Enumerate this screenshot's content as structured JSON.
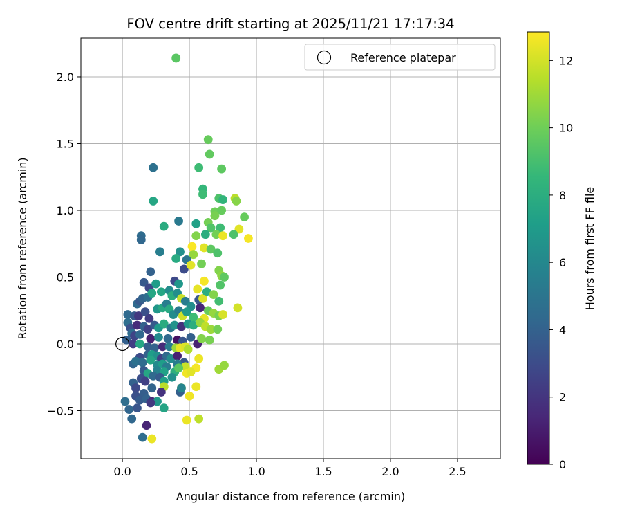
{
  "chart_data": {
    "type": "scatter",
    "title": "FOV centre drift starting at 2025/11/21 17:17:34",
    "xlabel": "Angular distance from reference (arcmin)",
    "ylabel": "Rotation from reference (arcmin)",
    "xlim": [
      -0.31,
      2.82
    ],
    "ylim": [
      -0.86,
      2.29
    ],
    "x_ticks": [
      0.0,
      0.5,
      1.0,
      1.5,
      2.0,
      2.5
    ],
    "x_tick_labels": [
      "0.0",
      "0.5",
      "1.0",
      "1.5",
      "2.0",
      "2.5"
    ],
    "y_ticks": [
      -0.5,
      0.0,
      0.5,
      1.0,
      1.5,
      2.0
    ],
    "y_tick_labels": [
      "−0.5",
      "0.0",
      "0.5",
      "1.0",
      "1.5",
      "2.0"
    ],
    "grid": true,
    "legend": {
      "position": "top-right",
      "entries": [
        "Reference platepar"
      ]
    },
    "reference_point": {
      "x": 0.0,
      "y": 0.0
    },
    "colorbar": {
      "label": "Hours from first FF file",
      "range": [
        0,
        12.85
      ],
      "ticks": [
        0,
        2,
        4,
        6,
        8,
        10,
        12
      ],
      "tick_labels": [
        "0",
        "2",
        "4",
        "6",
        "8",
        "10",
        "12"
      ],
      "colormap": "viridis",
      "colormap_stops": [
        "#440154",
        "#482878",
        "#3e4989",
        "#31688e",
        "#26828e",
        "#1f9e89",
        "#35b779",
        "#6ece58",
        "#b5de2b",
        "#fde725"
      ]
    },
    "points": [
      [
        0.4,
        2.14,
        9.5
      ],
      [
        0.64,
        1.53,
        9.8
      ],
      [
        0.65,
        1.42,
        9.7
      ],
      [
        0.57,
        1.32,
        8.8
      ],
      [
        0.74,
        1.31,
        9.6
      ],
      [
        0.23,
        1.32,
        4.8
      ],
      [
        0.6,
        1.16,
        8.5
      ],
      [
        0.6,
        1.12,
        8.8
      ],
      [
        0.23,
        1.07,
        7.6
      ],
      [
        0.72,
        1.09,
        9.2
      ],
      [
        0.75,
        1.08,
        8.4
      ],
      [
        0.84,
        1.09,
        11.5
      ],
      [
        0.85,
        1.07,
        10.5
      ],
      [
        0.69,
        0.99,
        10.0
      ],
      [
        0.74,
        1.0,
        9.8
      ],
      [
        0.69,
        0.96,
        10.2
      ],
      [
        0.91,
        0.95,
        9.8
      ],
      [
        0.42,
        0.92,
        5.2
      ],
      [
        0.55,
        0.9,
        7.3
      ],
      [
        0.64,
        0.91,
        10.1
      ],
      [
        0.31,
        0.88,
        7.9
      ],
      [
        0.66,
        0.87,
        9.3
      ],
      [
        0.73,
        0.87,
        8.8
      ],
      [
        0.87,
        0.86,
        12.3
      ],
      [
        0.14,
        0.81,
        4.5
      ],
      [
        0.14,
        0.78,
        4.3
      ],
      [
        0.7,
        0.82,
        10.1
      ],
      [
        0.75,
        0.81,
        12.5
      ],
      [
        0.83,
        0.82,
        9.2
      ],
      [
        0.94,
        0.79,
        12.7
      ],
      [
        0.55,
        0.81,
        10.4
      ],
      [
        0.62,
        0.82,
        8.0
      ],
      [
        0.28,
        0.69,
        5.5
      ],
      [
        0.43,
        0.69,
        6.4
      ],
      [
        0.52,
        0.73,
        12.8
      ],
      [
        0.61,
        0.72,
        12.3
      ],
      [
        0.66,
        0.71,
        9.6
      ],
      [
        0.71,
        0.68,
        9.2
      ],
      [
        0.53,
        0.67,
        10.8
      ],
      [
        0.4,
        0.64,
        7.8
      ],
      [
        0.48,
        0.63,
        5.0
      ],
      [
        0.46,
        0.56,
        3.0
      ],
      [
        0.51,
        0.59,
        12.3
      ],
      [
        0.59,
        0.6,
        10.1
      ],
      [
        0.72,
        0.55,
        10.4
      ],
      [
        0.74,
        0.51,
        10.6
      ],
      [
        0.76,
        0.5,
        9.6
      ],
      [
        0.21,
        0.54,
        4.0
      ],
      [
        0.16,
        0.46,
        3.6
      ],
      [
        0.2,
        0.42,
        2.8
      ],
      [
        0.25,
        0.45,
        7.1
      ],
      [
        0.39,
        0.47,
        2.9
      ],
      [
        0.42,
        0.45,
        6.8
      ],
      [
        0.56,
        0.41,
        12.4
      ],
      [
        0.61,
        0.47,
        12.7
      ],
      [
        0.73,
        0.44,
        9.3
      ],
      [
        0.11,
        0.3,
        4.4
      ],
      [
        0.13,
        0.32,
        3.6
      ],
      [
        0.15,
        0.34,
        4.1
      ],
      [
        0.19,
        0.35,
        4.6
      ],
      [
        0.22,
        0.38,
        7.6
      ],
      [
        0.29,
        0.39,
        7.6
      ],
      [
        0.35,
        0.4,
        6.2
      ],
      [
        0.37,
        0.36,
        8.0
      ],
      [
        0.41,
        0.38,
        6.3
      ],
      [
        0.44,
        0.34,
        11.8
      ],
      [
        0.47,
        0.32,
        5.4
      ],
      [
        0.51,
        0.28,
        6.3
      ],
      [
        0.57,
        0.33,
        3.5
      ],
      [
        0.6,
        0.34,
        12.2
      ],
      [
        0.63,
        0.39,
        8.0
      ],
      [
        0.68,
        0.37,
        10.4
      ],
      [
        0.72,
        0.32,
        8.9
      ],
      [
        0.86,
        0.27,
        12.0
      ],
      [
        0.04,
        0.22,
        4.4
      ],
      [
        0.09,
        0.21,
        3.6
      ],
      [
        0.12,
        0.21,
        2.1
      ],
      [
        0.17,
        0.24,
        3.2
      ],
      [
        0.2,
        0.19,
        2.3
      ],
      [
        0.26,
        0.26,
        6.8
      ],
      [
        0.3,
        0.27,
        7.7
      ],
      [
        0.33,
        0.3,
        5.5
      ],
      [
        0.35,
        0.26,
        7.8
      ],
      [
        0.38,
        0.22,
        6.2
      ],
      [
        0.42,
        0.25,
        5.3
      ],
      [
        0.45,
        0.21,
        11.9
      ],
      [
        0.48,
        0.24,
        7.0
      ],
      [
        0.53,
        0.2,
        8.8
      ],
      [
        0.58,
        0.27,
        1.4
      ],
      [
        0.61,
        0.19,
        12.4
      ],
      [
        0.64,
        0.25,
        9.8
      ],
      [
        0.68,
        0.23,
        10.8
      ],
      [
        0.72,
        0.21,
        10.2
      ],
      [
        0.75,
        0.22,
        12.1
      ],
      [
        0.04,
        0.16,
        4.6
      ],
      [
        0.06,
        0.12,
        3.2
      ],
      [
        0.11,
        0.14,
        1.6
      ],
      [
        0.16,
        0.13,
        4.0
      ],
      [
        0.19,
        0.11,
        2.5
      ],
      [
        0.24,
        0.14,
        3.6
      ],
      [
        0.27,
        0.12,
        6.9
      ],
      [
        0.31,
        0.15,
        7.9
      ],
      [
        0.36,
        0.12,
        5.1
      ],
      [
        0.39,
        0.14,
        6.6
      ],
      [
        0.44,
        0.13,
        1.8
      ],
      [
        0.49,
        0.15,
        6.8
      ],
      [
        0.53,
        0.14,
        8.0
      ],
      [
        0.58,
        0.16,
        10.8
      ],
      [
        0.62,
        0.13,
        11.6
      ],
      [
        0.66,
        0.11,
        10.9
      ],
      [
        0.71,
        0.11,
        10.1
      ],
      [
        0.07,
        0.08,
        4.5
      ],
      [
        0.09,
        0.06,
        2.7
      ],
      [
        0.13,
        0.07,
        4.3
      ],
      [
        0.21,
        0.04,
        1.1
      ],
      [
        0.27,
        0.05,
        6.1
      ],
      [
        0.34,
        0.04,
        4.4
      ],
      [
        0.41,
        0.03,
        0.5
      ],
      [
        0.45,
        0.02,
        3.4
      ],
      [
        0.51,
        0.05,
        3.9
      ],
      [
        0.56,
        0.0,
        1.2
      ],
      [
        0.59,
        0.04,
        10.4
      ],
      [
        0.65,
        0.03,
        10.2
      ],
      [
        0.03,
        0.03,
        3.9
      ],
      [
        0.08,
        0.0,
        2.4
      ],
      [
        0.13,
        0.0,
        7.6
      ],
      [
        0.19,
        -0.02,
        3.8
      ],
      [
        0.24,
        -0.03,
        4.1
      ],
      [
        0.3,
        -0.02,
        1.5
      ],
      [
        0.35,
        -0.02,
        5.3
      ],
      [
        0.4,
        -0.03,
        10.9
      ],
      [
        0.43,
        -0.03,
        12.4
      ],
      [
        0.47,
        -0.02,
        12.2
      ],
      [
        0.49,
        -0.04,
        11.3
      ],
      [
        0.13,
        -0.1,
        3.0
      ],
      [
        0.19,
        -0.08,
        4.0
      ],
      [
        0.22,
        -0.08,
        7.1
      ],
      [
        0.26,
        -0.09,
        6.5
      ],
      [
        0.29,
        -0.11,
        2.5
      ],
      [
        0.33,
        -0.09,
        4.4
      ],
      [
        0.36,
        -0.11,
        6.2
      ],
      [
        0.41,
        -0.09,
        1.2
      ],
      [
        0.46,
        -0.14,
        3.6
      ],
      [
        0.57,
        -0.11,
        12.5
      ],
      [
        0.08,
        -0.15,
        4.2
      ],
      [
        0.1,
        -0.13,
        4.8
      ],
      [
        0.15,
        -0.14,
        4.5
      ],
      [
        0.21,
        -0.12,
        7.5
      ],
      [
        0.26,
        -0.16,
        6.1
      ],
      [
        0.3,
        -0.15,
        7.1
      ],
      [
        0.33,
        -0.17,
        5.4
      ],
      [
        0.41,
        -0.15,
        5.4
      ],
      [
        0.47,
        -0.17,
        11.8
      ],
      [
        0.55,
        -0.18,
        12.7
      ],
      [
        0.72,
        -0.19,
        11.0
      ],
      [
        0.76,
        -0.16,
        10.8
      ],
      [
        0.16,
        -0.2,
        3.7
      ],
      [
        0.19,
        -0.22,
        7.6
      ],
      [
        0.26,
        -0.2,
        5.7
      ],
      [
        0.31,
        -0.21,
        7.3
      ],
      [
        0.39,
        -0.21,
        8.1
      ],
      [
        0.42,
        -0.18,
        9.5
      ],
      [
        0.48,
        -0.22,
        12.6
      ],
      [
        0.51,
        -0.21,
        12.3
      ],
      [
        0.14,
        -0.26,
        3.1
      ],
      [
        0.17,
        -0.28,
        2.5
      ],
      [
        0.23,
        -0.24,
        4.4
      ],
      [
        0.28,
        -0.25,
        3.7
      ],
      [
        0.31,
        -0.28,
        7.2
      ],
      [
        0.37,
        -0.25,
        6.5
      ],
      [
        0.08,
        -0.29,
        4.0
      ],
      [
        0.1,
        -0.33,
        2.9
      ],
      [
        0.22,
        -0.33,
        4.1
      ],
      [
        0.31,
        -0.32,
        11.5
      ],
      [
        0.44,
        -0.33,
        12.3
      ],
      [
        0.55,
        -0.32,
        12.5
      ],
      [
        0.16,
        -0.37,
        3.8
      ],
      [
        0.29,
        -0.36,
        1.9
      ],
      [
        0.43,
        -0.36,
        3.9
      ],
      [
        0.44,
        -0.33,
        5.8
      ],
      [
        0.5,
        -0.39,
        12.6
      ],
      [
        0.1,
        -0.39,
        3.2
      ],
      [
        0.13,
        -0.42,
        3.7
      ],
      [
        0.18,
        -0.41,
        4.0
      ],
      [
        0.22,
        -0.43,
        1.4
      ],
      [
        0.26,
        -0.43,
        6.8
      ],
      [
        0.02,
        -0.43,
        4.6
      ],
      [
        0.05,
        -0.49,
        4.2
      ],
      [
        0.11,
        -0.48,
        3.4
      ],
      [
        0.21,
        -0.44,
        2.2
      ],
      [
        0.31,
        -0.48,
        7.5
      ],
      [
        0.07,
        -0.56,
        4.3
      ],
      [
        0.48,
        -0.57,
        12.5
      ],
      [
        0.57,
        -0.56,
        11.6
      ],
      [
        0.15,
        -0.7,
        4.6
      ],
      [
        0.18,
        -0.61,
        1.3
      ],
      [
        0.22,
        -0.71,
        12.5
      ]
    ]
  }
}
